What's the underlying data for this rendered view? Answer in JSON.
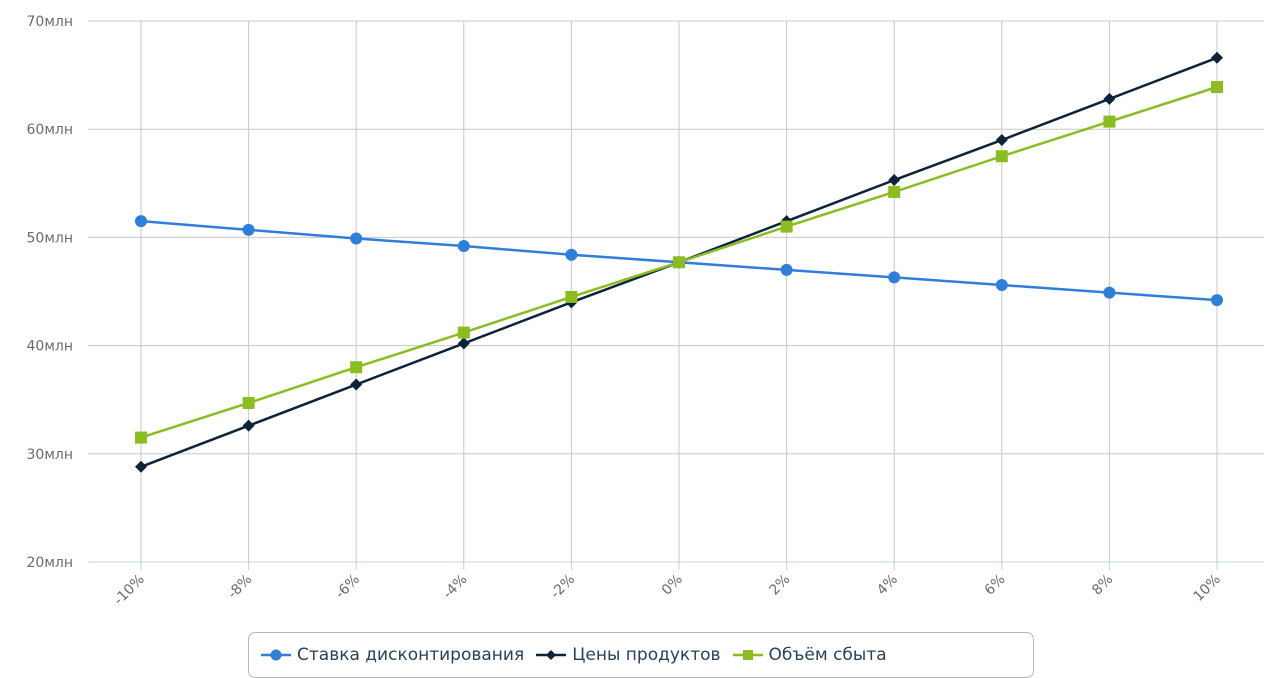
{
  "chart_data": {
    "type": "line",
    "title": "",
    "xlabel": "",
    "ylabel": "",
    "categories": [
      "-10%",
      "-8%",
      "-6%",
      "-4%",
      "-2%",
      "0%",
      "2%",
      "4%",
      "6%",
      "8%",
      "10%"
    ],
    "ylim": [
      20,
      70
    ],
    "y_ticks": [
      "20млн",
      "30млн",
      "40млн",
      "50млн",
      "60млн",
      "70млн"
    ],
    "y_unit": "млн",
    "grid": true,
    "legend_position": "bottom-center",
    "series": [
      {
        "name": "Ставка дисконтирования",
        "color": "#2f7ed8",
        "marker": "circle",
        "values": [
          51.5,
          50.7,
          49.9,
          49.2,
          48.4,
          47.7,
          47.0,
          46.3,
          45.6,
          44.9,
          44.2
        ]
      },
      {
        "name": "Цены продуктов",
        "color": "#0d233a",
        "marker": "diamond",
        "values": [
          28.8,
          32.6,
          36.4,
          40.2,
          44.0,
          47.7,
          51.5,
          55.3,
          59.0,
          62.8,
          66.6
        ]
      },
      {
        "name": "Объём сбыта",
        "color": "#8bbc21",
        "marker": "square",
        "values": [
          31.5,
          34.7,
          38.0,
          41.2,
          44.5,
          47.7,
          51.0,
          54.2,
          57.5,
          60.7,
          63.9
        ]
      }
    ]
  }
}
